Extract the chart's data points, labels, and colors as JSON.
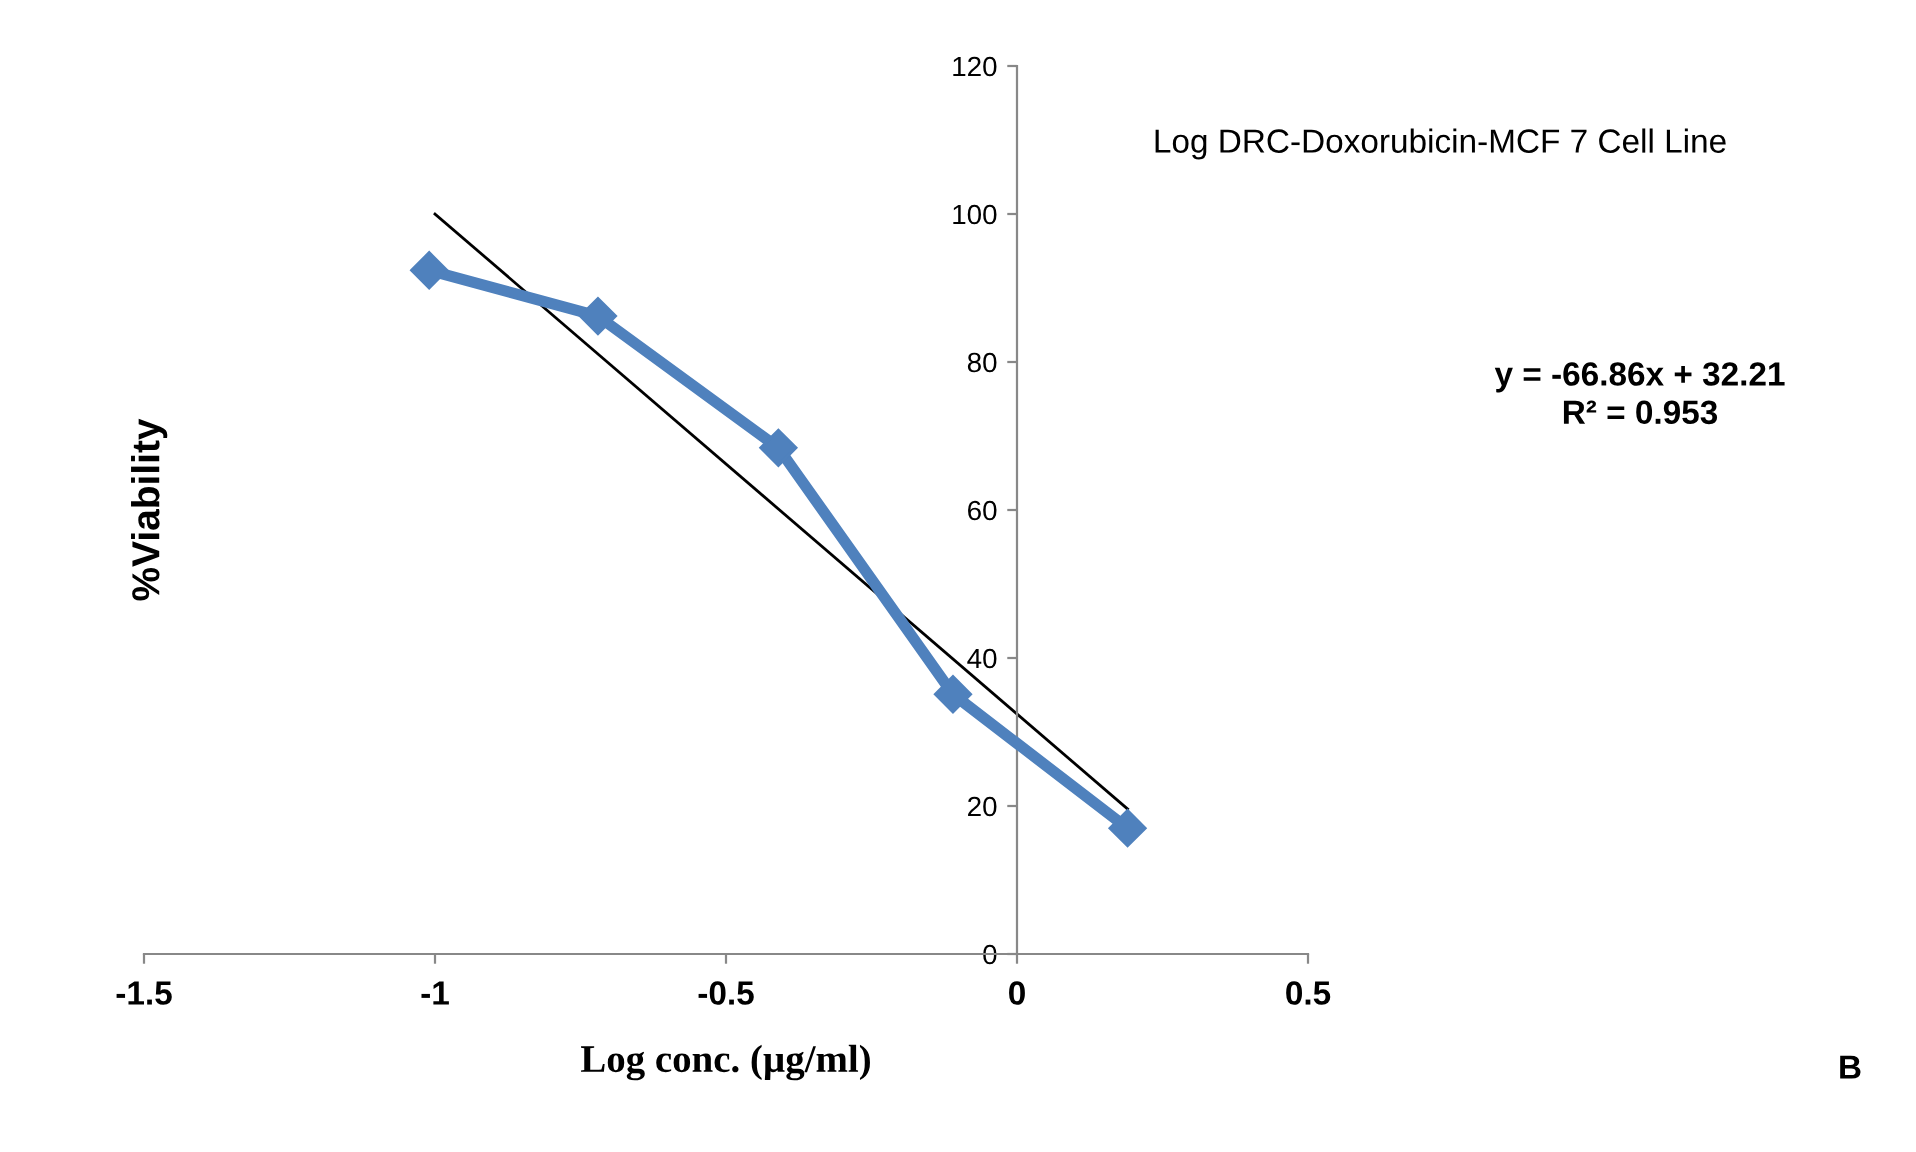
{
  "chart_data": {
    "type": "line",
    "title": "Log DRC-Doxorubicin-MCF 7 Cell Line",
    "xlabel": "Log conc. (µg/ml)",
    "ylabel": "%Viability",
    "annotations": [
      "y = -66.86x + 32.21\nR² = 0.953",
      "B"
    ],
    "series": [
      {
        "color": "#4f81bd",
        "x": [
          -1.01,
          -0.72,
          -0.41,
          -0.11,
          0.19
        ],
        "values": [
          92.4,
          86.2,
          68.4,
          35.1,
          17.0
        ],
        "marker": "diamond"
      },
      {
        "type": "line",
        "color": "#000000",
        "x": [
          -1.0,
          0.19
        ],
        "values": [
          100,
          19.6
        ],
        "marker": "none"
      }
    ],
    "xlim": [
      -1.5,
      0.5
    ],
    "xticks": [
      -1.5,
      -1,
      -0.5,
      0,
      0.5
    ],
    "ylim": [
      0,
      120
    ],
    "yticks": [
      0,
      20,
      40,
      60,
      80,
      100,
      120
    ],
    "grid": false,
    "legend": false
  }
}
